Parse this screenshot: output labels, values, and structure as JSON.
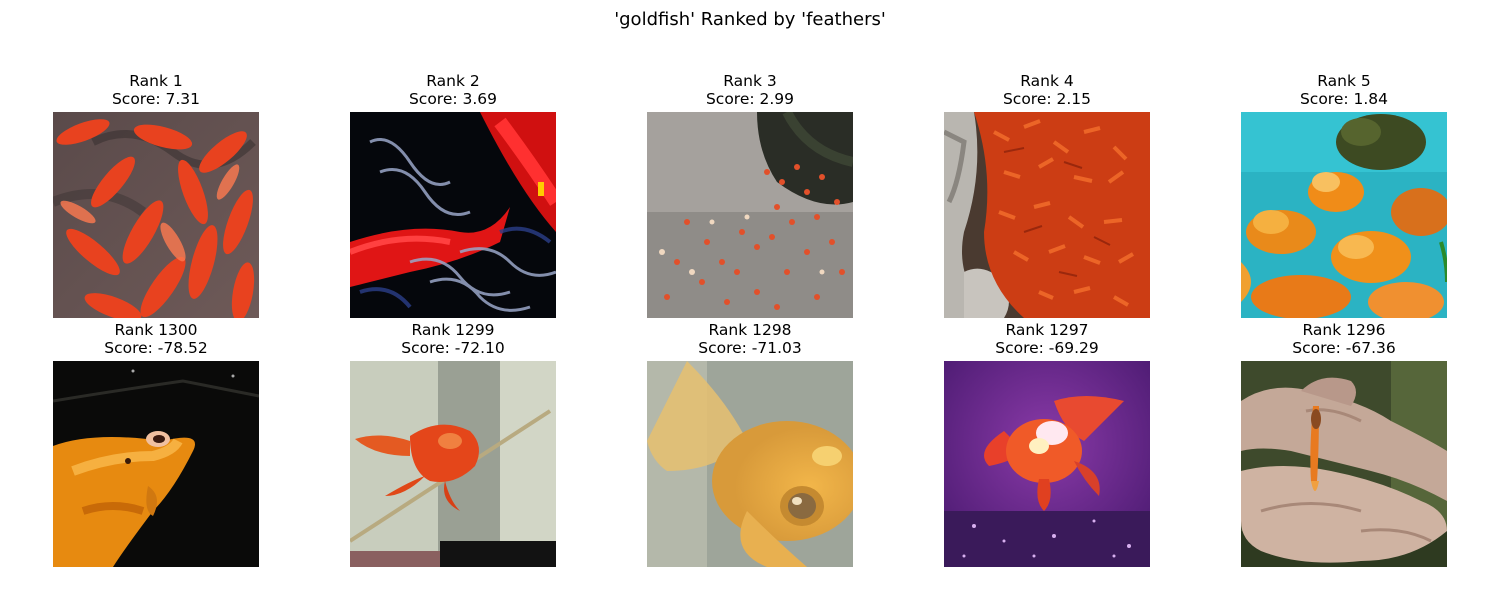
{
  "figure": {
    "title": "'goldfish' Ranked by 'feathers'"
  },
  "top_row": [
    {
      "rank_label": "Rank 1",
      "score_label": "Score: 7.31",
      "scene": "koi-swarm"
    },
    {
      "rank_label": "Rank 2",
      "score_label": "Score: 3.69",
      "scene": "koi-closeup-dark"
    },
    {
      "rank_label": "Rank 3",
      "score_label": "Score: 2.99",
      "scene": "pond-school"
    },
    {
      "rank_label": "Rank 4",
      "score_label": "Score: 2.15",
      "scene": "pond-rocks-dense"
    },
    {
      "rank_label": "Rank 5",
      "score_label": "Score: 1.84",
      "scene": "aquarium-fancy"
    }
  ],
  "bottom_row": [
    {
      "rank_label": "Rank 1300",
      "score_label": "Score: -78.52",
      "scene": "dark-water-koi"
    },
    {
      "rank_label": "Rank 1299",
      "score_label": "Score: -72.10",
      "scene": "tank-grey"
    },
    {
      "rank_label": "Rank 1298",
      "score_label": "Score: -71.03",
      "scene": "tank-blurry-closeup"
    },
    {
      "rank_label": "Rank 1297",
      "score_label": "Score: -69.29",
      "scene": "purple-tank"
    },
    {
      "rank_label": "Rank 1296",
      "score_label": "Score: -67.36",
      "scene": "fish-in-hands"
    }
  ]
}
